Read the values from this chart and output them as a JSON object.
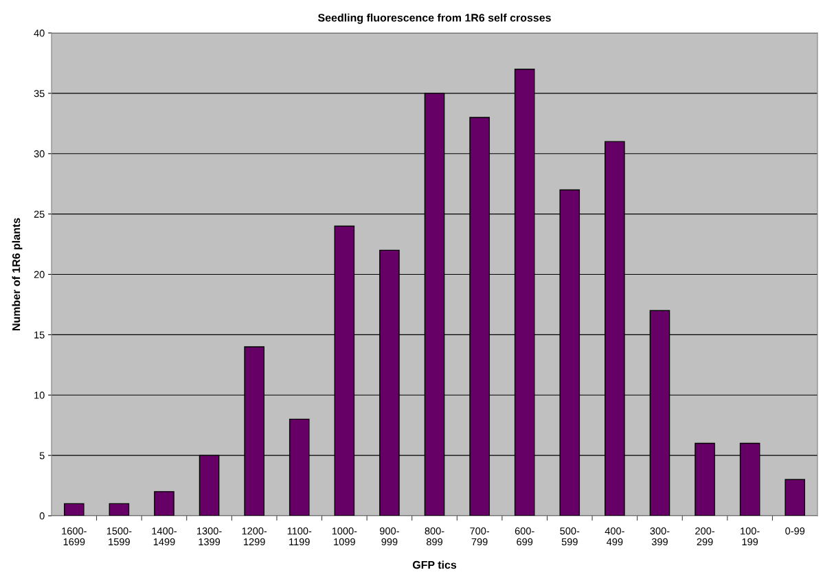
{
  "chart_data": {
    "type": "bar",
    "title": "Seedling fluorescence from 1R6 self crosses",
    "xlabel": "GFP tics",
    "ylabel": "Number of 1R6 plants",
    "categories": [
      "1600-\n1699",
      "1500-\n1599",
      "1400-\n1499",
      "1300-\n1399",
      "1200-\n1299",
      "1100-\n1199",
      "1000-\n1099",
      "900-\n999",
      "800-\n899",
      "700-\n799",
      "600-\n699",
      "500-\n599",
      "400-\n499",
      "300-\n399",
      "200-\n299",
      "100-\n199",
      "0-99"
    ],
    "values": [
      1,
      1,
      2,
      5,
      14,
      8,
      24,
      22,
      35,
      33,
      37,
      27,
      31,
      17,
      6,
      6,
      3
    ],
    "color": "#660066",
    "ylim": [
      0,
      40
    ],
    "yticks": [
      0,
      5,
      10,
      15,
      20,
      25,
      30,
      35,
      40
    ],
    "grid": "y"
  }
}
